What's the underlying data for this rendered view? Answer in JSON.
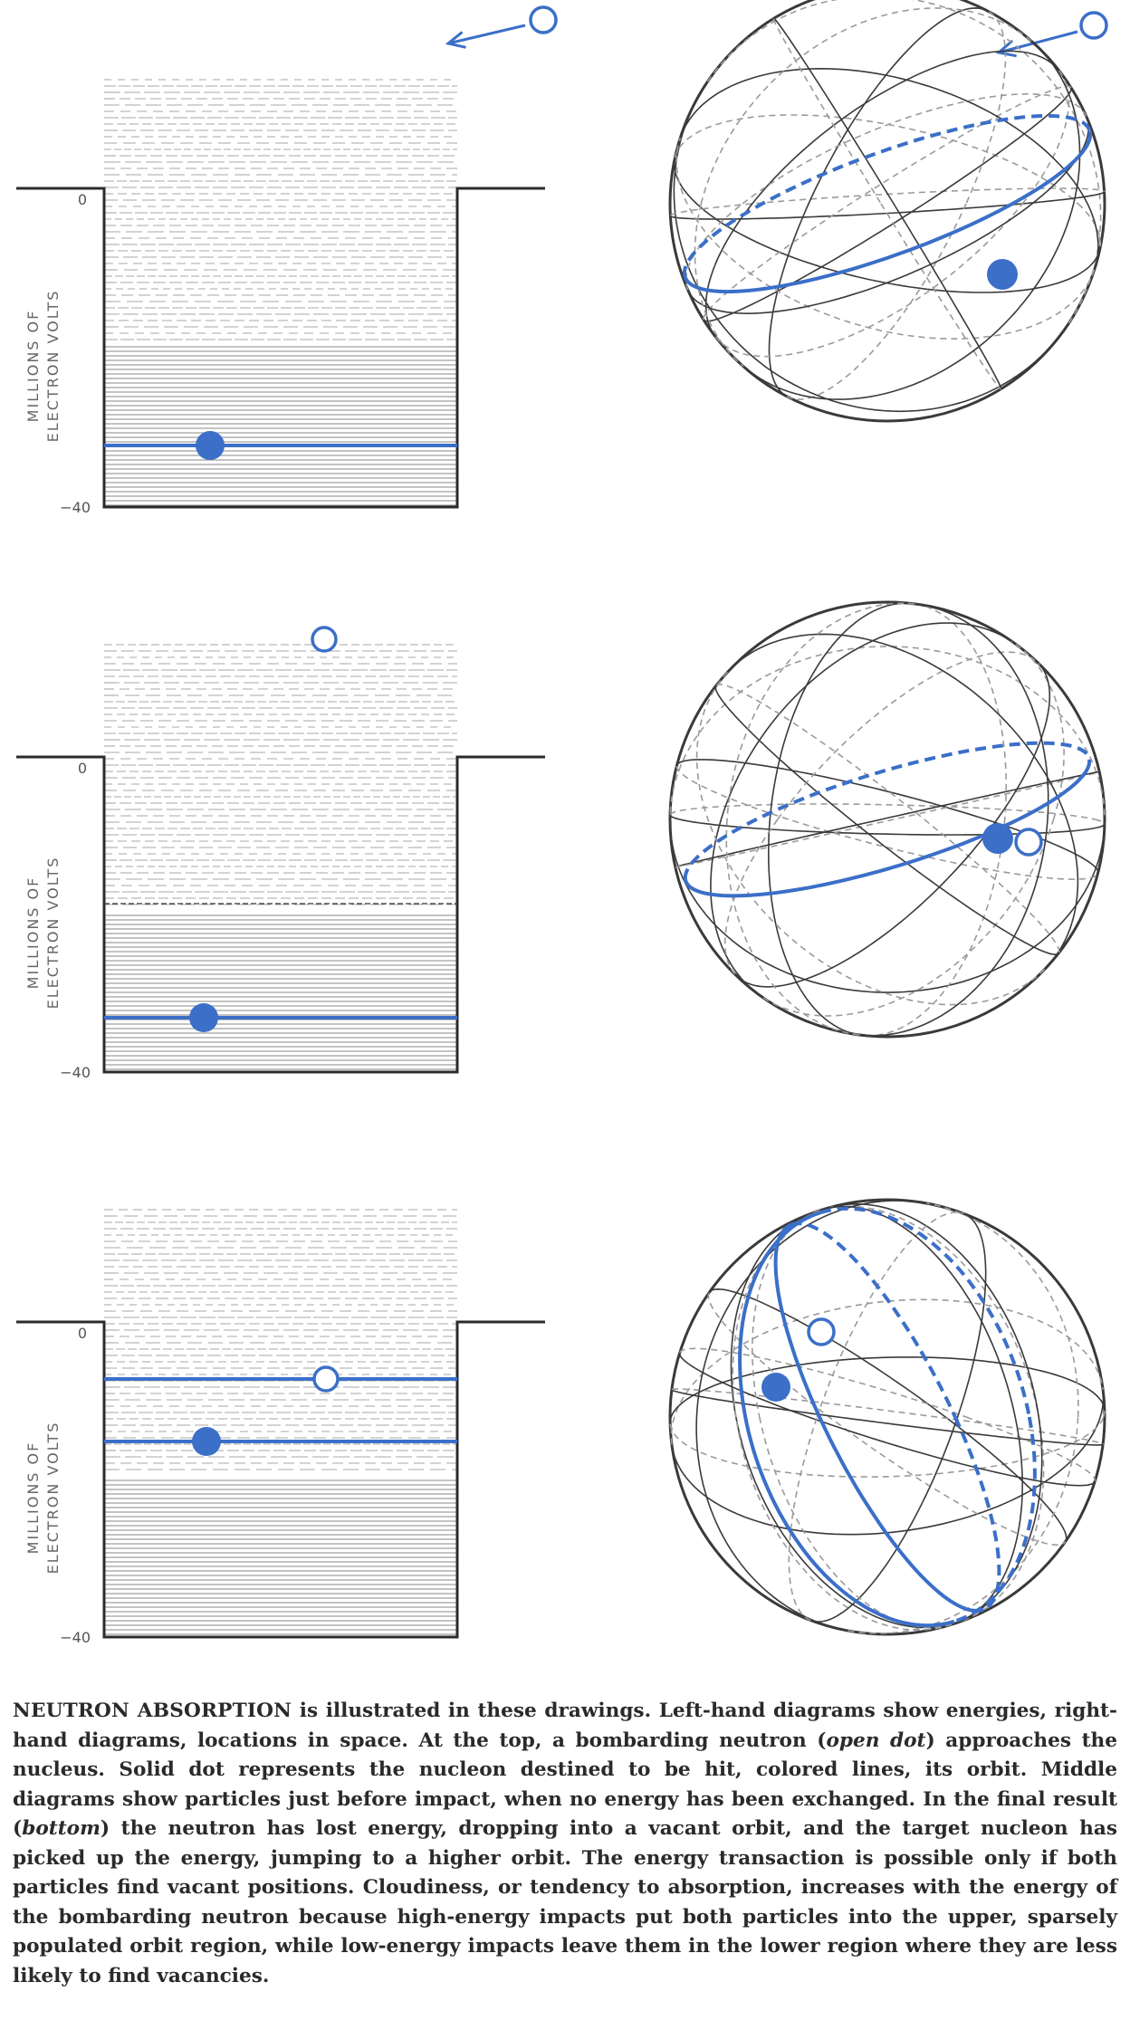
{
  "axis": {
    "label_line1": "MILLIONS OF",
    "label_line2": "ELECTRON VOLTS",
    "tick_top": "0",
    "tick_bottom": "−40"
  },
  "colors": {
    "accent_blue": "#3b6fc8",
    "ink": "#2b2b2b",
    "sphere_line": "#3a3a3a",
    "sphere_dash": "#9a9a9a"
  },
  "panels": [
    {
      "name": "top",
      "neutron": "approaching",
      "target": "solid-dot-lower-orbit"
    },
    {
      "name": "middle",
      "neutron": "just-before-impact",
      "target": "solid-dot-lower-orbit"
    },
    {
      "name": "bottom",
      "neutron": "dropped-to-vacant-orbit",
      "target": "jumped-to-higher-orbit"
    }
  ],
  "caption": {
    "lead": "NEUTRON ABSORPTION",
    "t1": " is illustrated in these drawings. Left-hand diagrams show energies, right-hand diagrams, locations in space. At the top, a bombarding neutron (",
    "e1": "open dot",
    "t2": ") approaches the nucleus. Solid dot represents the nucleon destined to be hit, colored lines, its orbit. Middle diagrams show particles just before impact, when no energy has been exchanged. In the final result (",
    "e2": "bottom",
    "t3": ") the neutron has lost energy, dropping into a vacant orbit, and the target nucleon has picked up the energy, jumping to a higher orbit. The energy transaction is possible only if both particles find vacant positions. Cloudiness, or tendency to absorption, increases with the energy of the bombarding neutron because high-energy impacts put both particles into the upper, sparsely populated orbit region, while low-energy impacts leave them in the lower region where they are less likely to find vacancies."
  }
}
